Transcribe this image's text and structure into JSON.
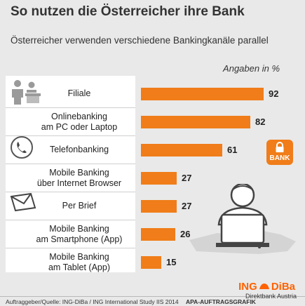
{
  "title": "So nutzen die Österreicher ihre Bank",
  "subtitle": "Österreicher verwenden verschiedene Bankingkanäle parallel",
  "unit_label": "Angaben in %",
  "footer": {
    "source": "Auftraggeber/Quelle: ING-DiBa / ING International Study IIS 2014",
    "agency": "APA-AUFTRAGSGRAFIK",
    "brand_left": "ING",
    "brand_right": "DiBa",
    "brand_sub": "Direktbank Austria"
  },
  "badge_text": "BANK",
  "colors": {
    "bar": "#f07d19",
    "brand": "#ff6200"
  },
  "icons": [
    "people-icon",
    "telephone-icon",
    "envelope-icon",
    "lock-icon",
    "person-laptop-icon"
  ],
  "chart_data": {
    "type": "bar",
    "orientation": "horizontal",
    "categories": [
      [
        "Filiale"
      ],
      [
        "Onlinebanking",
        "am PC oder Laptop"
      ],
      [
        "Telefonbanking"
      ],
      [
        "Mobile Banking",
        "über Internet Browser"
      ],
      [
        "Per Brief"
      ],
      [
        "Mobile Banking",
        "am Smartphone (App)"
      ],
      [
        "Mobile Banking",
        "am Tablet (App)"
      ]
    ],
    "values": [
      92,
      82,
      61,
      27,
      27,
      26,
      15
    ],
    "xlim": [
      0,
      100
    ],
    "unit": "Angaben in %",
    "grid": false,
    "data_labels": true
  }
}
